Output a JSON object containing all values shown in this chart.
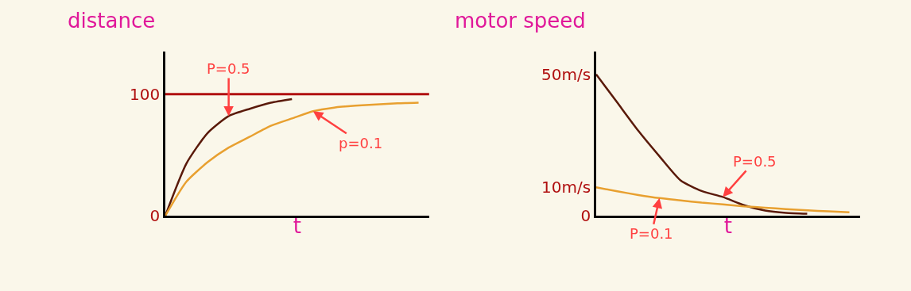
{
  "chart_data": [
    {
      "type": "line",
      "ylabel": "distance",
      "xlabel": "t",
      "categories": [
        null,
        null,
        null,
        null,
        null,
        null,
        null,
        null,
        null,
        null,
        null,
        null,
        null
      ],
      "series": [
        {
          "name": "P=0.5",
          "color": "#5a1a0a",
          "values": [
            0,
            43,
            68,
            82,
            88,
            93,
            96,
            null,
            null,
            null,
            null,
            null,
            null
          ]
        },
        {
          "name": "p=0.1",
          "color": "#e8a030",
          "values": [
            0,
            28,
            44,
            56,
            65,
            74,
            80,
            86,
            89,
            90.5,
            91.5,
            92.5,
            93
          ]
        }
      ],
      "ylim": [
        0,
        135
      ],
      "yticks": [
        0,
        100
      ],
      "ref_lines": [
        {
          "axis": "y",
          "value": 100,
          "color": "#b01010"
        }
      ],
      "grid": false,
      "legend": false
    },
    {
      "type": "line",
      "ylabel": "motor speed",
      "xlabel": "t",
      "categories": [
        null,
        null,
        null,
        null,
        null,
        null,
        null,
        null,
        null,
        null,
        null,
        null,
        null
      ],
      "series": [
        {
          "name": "P=0.5",
          "color": "#5a1a0a",
          "values": [
            50,
            40,
            30,
            21,
            12.5,
            8.7,
            6.6,
            3.7,
            1.8,
            1.0,
            0.7,
            null,
            null
          ]
        },
        {
          "name": "P=0.1",
          "color": "#e8a030",
          "values": [
            10,
            8.6,
            7.3,
            6.2,
            5.4,
            4.6,
            4.0,
            3.3,
            2.8,
            2.3,
            1.9,
            1.5,
            1.2
          ]
        }
      ],
      "ylim": [
        0,
        58
      ],
      "yticks": [
        0,
        {
          "value": 10,
          "label": "10m/s"
        },
        {
          "value": 50,
          "label": "50m/s"
        }
      ],
      "grid": false,
      "legend": false
    }
  ]
}
